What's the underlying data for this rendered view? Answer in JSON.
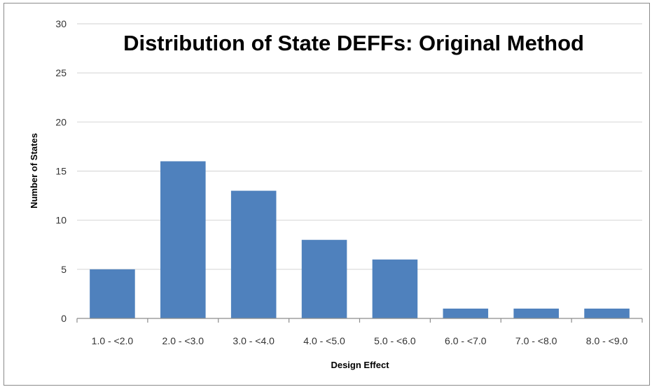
{
  "chart_data": {
    "type": "bar",
    "title": "Distribution of State DEFFs: Original Method",
    "xlabel": "Design Effect",
    "ylabel": "Number of States",
    "categories": [
      "1.0 - <2.0",
      "2.0 - <3.0",
      "3.0 - <4.0",
      "4.0 - <5.0",
      "5.0 - <6.0",
      "6.0 - <7.0",
      "7.0 - <8.0",
      "8.0 - <9.0"
    ],
    "values": [
      5,
      16,
      13,
      8,
      6,
      1,
      1,
      1
    ],
    "ylim": [
      0,
      30
    ],
    "yticks": [
      0,
      5,
      10,
      15,
      20,
      25,
      30
    ],
    "grid": true,
    "legend": "none",
    "bar_color": "#4f81bd",
    "grid_color": "#d9d9d9"
  }
}
